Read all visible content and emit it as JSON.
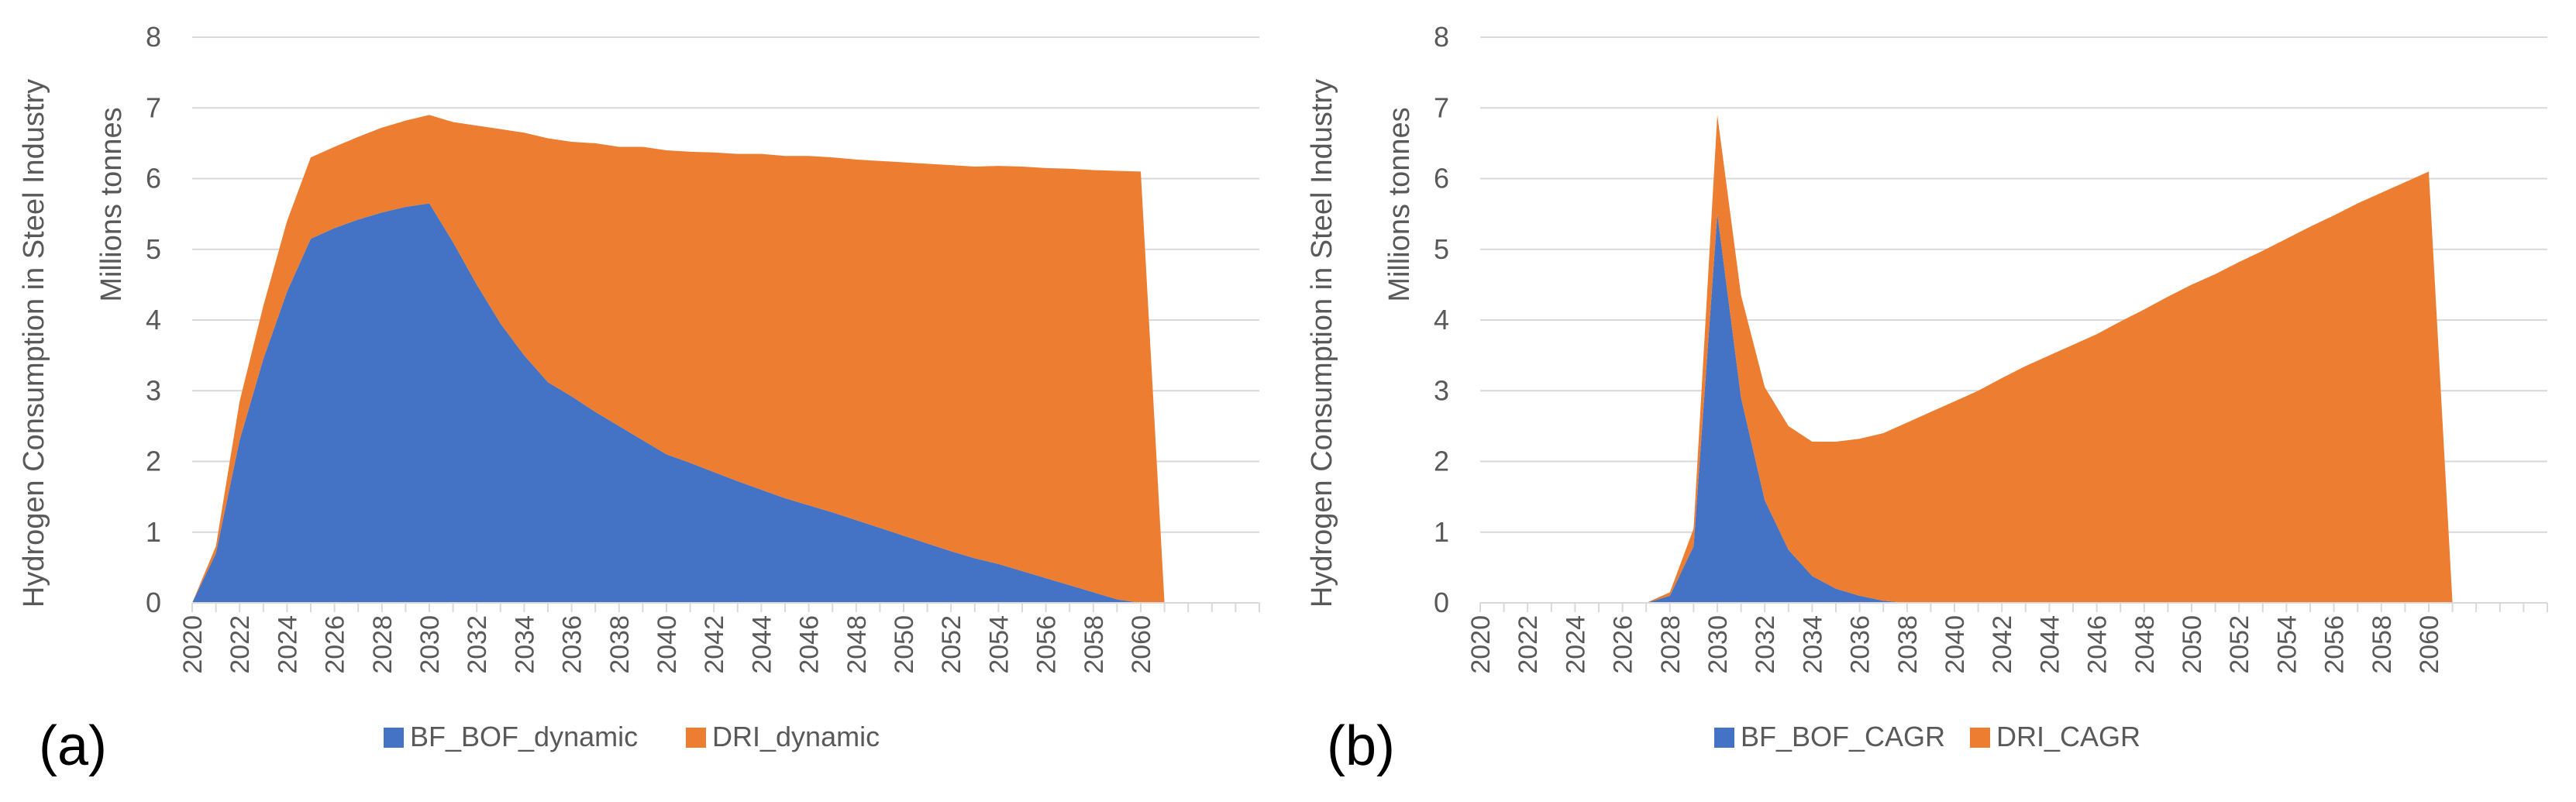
{
  "chart_data": [
    {
      "type": "area",
      "stacked": true,
      "panel_label": "(a)",
      "title": "",
      "ylabel_outer": "Hydrogen Consumption in Steel Industry",
      "ylabel_inner": "Millions tonnes",
      "xlabel": "",
      "ylim": [
        0,
        8
      ],
      "yticks": [
        0,
        1,
        2,
        3,
        4,
        5,
        6,
        7,
        8
      ],
      "x": [
        2020,
        2021,
        2022,
        2023,
        2024,
        2025,
        2026,
        2027,
        2028,
        2029,
        2030,
        2031,
        2032,
        2033,
        2034,
        2035,
        2036,
        2037,
        2038,
        2039,
        2040,
        2041,
        2042,
        2043,
        2044,
        2045,
        2046,
        2047,
        2048,
        2049,
        2050,
        2051,
        2052,
        2053,
        2054,
        2055,
        2056,
        2057,
        2058,
        2059,
        2060,
        2061,
        2062,
        2063,
        2064,
        2065
      ],
      "xticks": [
        2020,
        2022,
        2024,
        2026,
        2028,
        2030,
        2032,
        2034,
        2036,
        2038,
        2040,
        2042,
        2044,
        2046,
        2048,
        2050,
        2052,
        2054,
        2056,
        2058,
        2060
      ],
      "grid": true,
      "legend_position": "bottom",
      "series": [
        {
          "name": "BF_BOF_dynamic",
          "color": "#4472C4",
          "values": [
            0.0,
            0.7,
            2.3,
            3.45,
            4.4,
            5.15,
            5.3,
            5.42,
            5.52,
            5.6,
            5.65,
            5.1,
            4.5,
            3.95,
            3.5,
            3.12,
            2.92,
            2.7,
            2.5,
            2.3,
            2.1,
            1.98,
            1.85,
            1.72,
            1.6,
            1.48,
            1.38,
            1.28,
            1.17,
            1.06,
            0.95,
            0.84,
            0.73,
            0.63,
            0.55,
            0.45,
            0.35,
            0.25,
            0.15,
            0.05,
            0.0,
            0,
            0,
            0,
            0,
            0
          ]
        },
        {
          "name": "DRI_dynamic",
          "color": "#ED7D31",
          "values": [
            0.0,
            0.1,
            0.55,
            0.75,
            1.0,
            1.15,
            1.15,
            1.17,
            1.2,
            1.22,
            1.25,
            1.7,
            2.25,
            2.75,
            3.15,
            3.45,
            3.6,
            3.8,
            3.95,
            4.15,
            4.3,
            4.4,
            4.52,
            4.63,
            4.75,
            4.84,
            4.94,
            5.02,
            5.1,
            5.19,
            5.28,
            5.37,
            5.46,
            5.54,
            5.63,
            5.72,
            5.8,
            5.89,
            5.97,
            6.06,
            6.1,
            0,
            0,
            0,
            0,
            0
          ]
        }
      ]
    },
    {
      "type": "area",
      "stacked": true,
      "panel_label": "(b)",
      "title": "",
      "ylabel_outer": "Hydrogen Consumption in Steel Industry",
      "ylabel_inner": "Millions tonnes",
      "xlabel": "",
      "ylim": [
        0,
        8
      ],
      "yticks": [
        0,
        1,
        2,
        3,
        4,
        5,
        6,
        7,
        8
      ],
      "x": [
        2020,
        2021,
        2022,
        2023,
        2024,
        2025,
        2026,
        2027,
        2028,
        2029,
        2030,
        2031,
        2032,
        2033,
        2034,
        2035,
        2036,
        2037,
        2038,
        2039,
        2040,
        2041,
        2042,
        2043,
        2044,
        2045,
        2046,
        2047,
        2048,
        2049,
        2050,
        2051,
        2052,
        2053,
        2054,
        2055,
        2056,
        2057,
        2058,
        2059,
        2060,
        2061,
        2062,
        2063,
        2064,
        2065
      ],
      "xticks": [
        2020,
        2022,
        2024,
        2026,
        2028,
        2030,
        2032,
        2034,
        2036,
        2038,
        2040,
        2042,
        2044,
        2046,
        2048,
        2050,
        2052,
        2054,
        2056,
        2058,
        2060
      ],
      "grid": true,
      "legend_position": "bottom",
      "series": [
        {
          "name": "BF_BOF_CAGR",
          "color": "#4472C4",
          "values": [
            0,
            0,
            0,
            0,
            0,
            0,
            0,
            0.0,
            0.1,
            0.8,
            5.5,
            2.9,
            1.45,
            0.75,
            0.38,
            0.2,
            0.1,
            0.03,
            0,
            0,
            0,
            0,
            0,
            0,
            0,
            0,
            0,
            0,
            0,
            0,
            0,
            0,
            0,
            0,
            0,
            0,
            0,
            0,
            0,
            0,
            0,
            0,
            0,
            0,
            0,
            0
          ]
        },
        {
          "name": "DRI_CAGR",
          "color": "#ED7D31",
          "values": [
            0,
            0,
            0,
            0,
            0,
            0,
            0,
            0.0,
            0.05,
            0.25,
            1.4,
            1.45,
            1.6,
            1.75,
            1.9,
            2.08,
            2.22,
            2.37,
            2.55,
            2.7,
            2.85,
            3.0,
            3.18,
            3.35,
            3.5,
            3.65,
            3.8,
            3.98,
            4.15,
            4.33,
            4.5,
            4.65,
            4.82,
            4.98,
            5.15,
            5.32,
            5.48,
            5.65,
            5.8,
            5.95,
            6.1,
            0,
            0,
            0,
            0,
            0
          ]
        }
      ]
    }
  ]
}
